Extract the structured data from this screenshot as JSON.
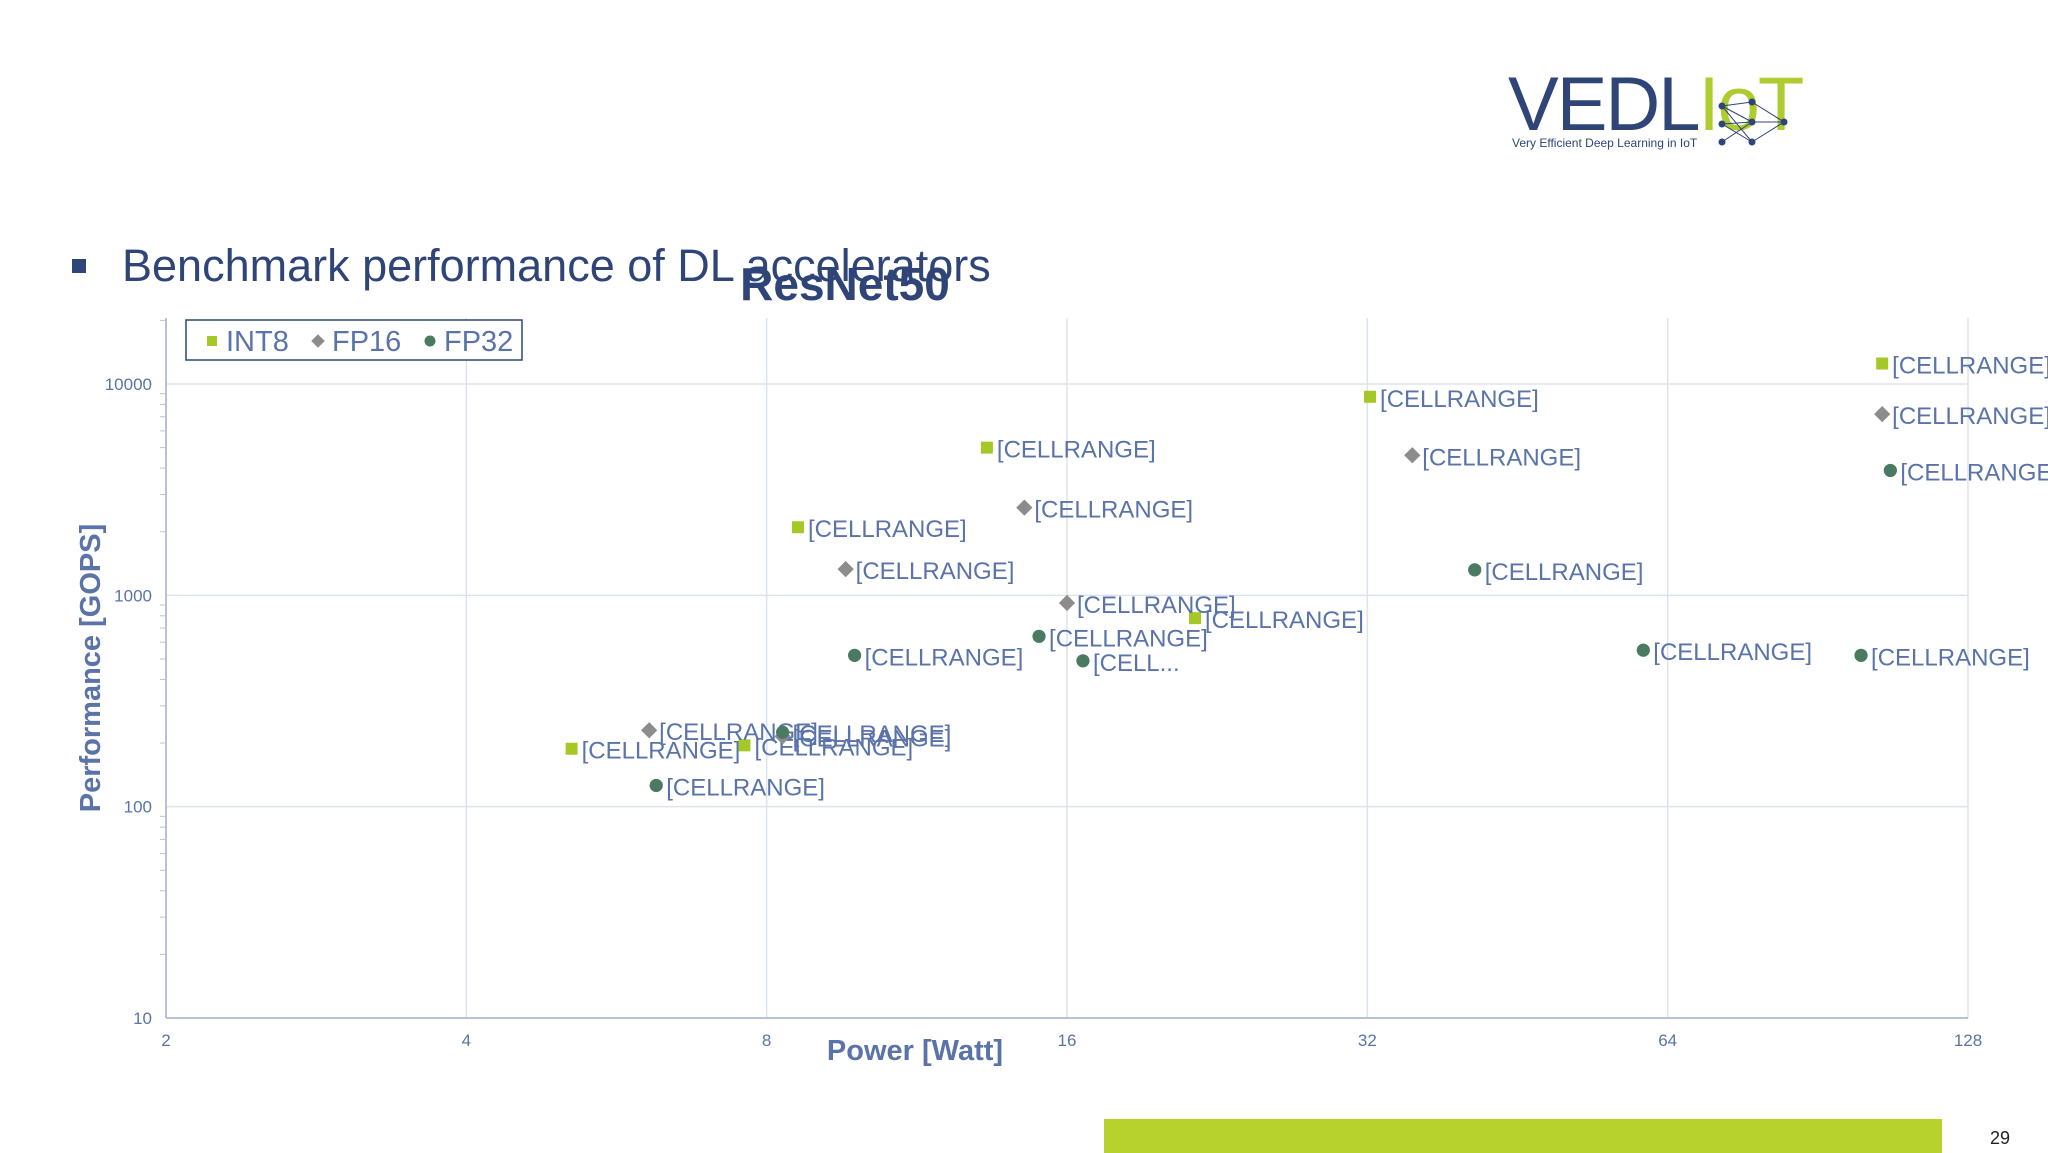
{
  "logo": {
    "brand_main": "VEDL",
    "brand_accent": "IoT",
    "tagline": "Very Efficient Deep Learning in IoT"
  },
  "bullet": "Benchmark performance of DL accelerators",
  "page_number": "29",
  "colors": {
    "int8": "#a6c827",
    "fp16": "#8c8c8c",
    "fp32": "#4a7a62",
    "text": "#5a73a8",
    "title": "#2f4577",
    "grid": "#dde3ee"
  },
  "chart_data": {
    "type": "scatter",
    "title": "ResNet50",
    "xlabel": "Power [Watt]",
    "ylabel": "Performance [GOPS]",
    "xscale": "log2",
    "yscale": "log10",
    "xlim": [
      2,
      128
    ],
    "ylim": [
      10,
      20000
    ],
    "xticks": [
      "2",
      "4",
      "8",
      "16",
      "32",
      "64",
      "128"
    ],
    "yticks": [
      "10",
      "100",
      "1000",
      "10000"
    ],
    "legend_placement": "top-left",
    "grid": true,
    "series": [
      {
        "name": "INT8",
        "marker": "square",
        "points": [
          {
            "x": 5.1,
            "y": 188,
            "label": "[CELLRANGE]"
          },
          {
            "x": 7.6,
            "y": 195,
            "label": "[CELLRANGE]"
          },
          {
            "x": 8.6,
            "y": 2100,
            "label": "[CELLRANGE]"
          },
          {
            "x": 13.3,
            "y": 5000,
            "label": "[CELLRANGE]"
          },
          {
            "x": 21.5,
            "y": 780,
            "label": "[CELLRANGE]"
          },
          {
            "x": 32.2,
            "y": 8700,
            "label": "[CELLRANGE]"
          },
          {
            "x": 105,
            "y": 12500,
            "label": "[CELLRANGE]"
          }
        ]
      },
      {
        "name": "FP16",
        "marker": "diamond",
        "points": [
          {
            "x": 6.1,
            "y": 230,
            "label": "[CELLRANGE]"
          },
          {
            "x": 8.3,
            "y": 215,
            "label": "[CELLRANGE]"
          },
          {
            "x": 9.6,
            "y": 1330,
            "label": "[CELLRANGE]"
          },
          {
            "x": 14.5,
            "y": 2600,
            "label": "[CELLRANGE]"
          },
          {
            "x": 16.0,
            "y": 920,
            "label": "[CELLRANGE]"
          },
          {
            "x": 35.5,
            "y": 4600,
            "label": "[CELLRANGE]"
          },
          {
            "x": 105,
            "y": 7200,
            "label": "[CELLRANGE]"
          }
        ]
      },
      {
        "name": "FP32",
        "marker": "circle",
        "points": [
          {
            "x": 6.2,
            "y": 126,
            "label": "[CELLRANGE]"
          },
          {
            "x": 8.3,
            "y": 225,
            "label": "[CELLRANGE]"
          },
          {
            "x": 9.8,
            "y": 520,
            "label": "[CELLRANGE]"
          },
          {
            "x": 15.0,
            "y": 640,
            "label": "[CELLRANGE]"
          },
          {
            "x": 16.6,
            "y": 490,
            "label": "[CELL..."
          },
          {
            "x": 41.0,
            "y": 1320,
            "label": "[CELLRANGE]"
          },
          {
            "x": 60.5,
            "y": 550,
            "label": "[CELLRANGE]"
          },
          {
            "x": 107,
            "y": 3900,
            "label": "[CELLRANGE]"
          },
          {
            "x": 100,
            "y": 520,
            "label": "[CELLRANGE]"
          }
        ]
      }
    ]
  }
}
